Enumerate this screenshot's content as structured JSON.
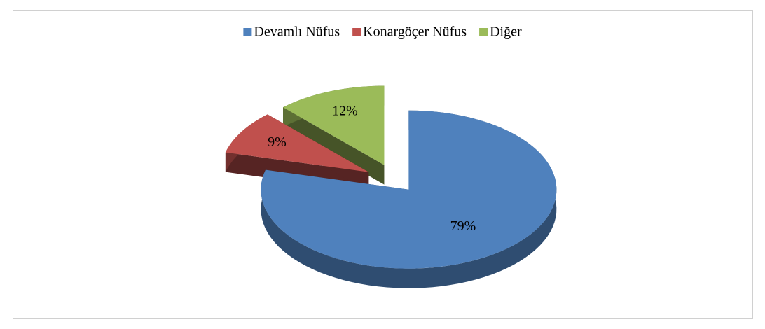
{
  "chart_data": {
    "type": "pie3d",
    "categories": [
      "Devamlı Nüfus",
      "Konargöçer Nüfus",
      "Diğer"
    ],
    "values": [
      79,
      9,
      12
    ],
    "value_labels": [
      "79%",
      "9%",
      "12%"
    ],
    "colors": [
      "#4f81bd",
      "#c0504d",
      "#9bbb59"
    ],
    "legend": "top"
  }
}
